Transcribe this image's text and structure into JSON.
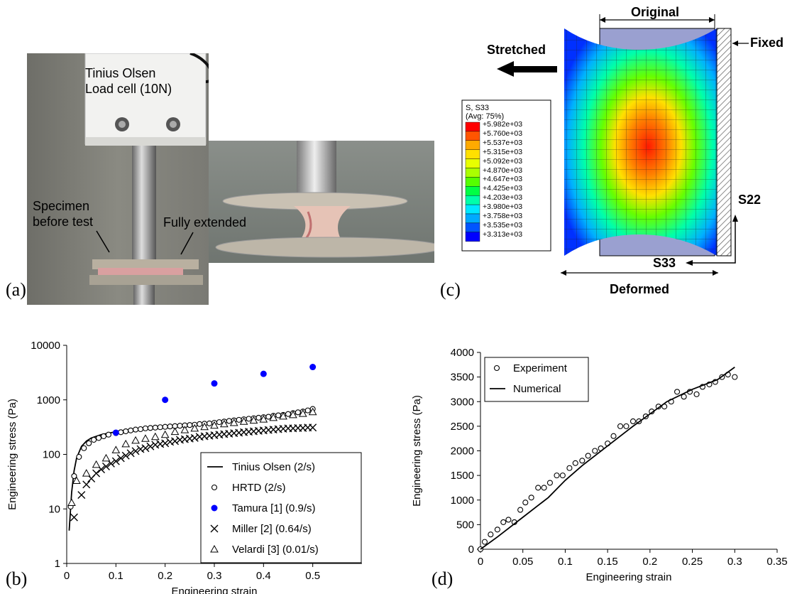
{
  "panels": {
    "a": {
      "letter": "(a)",
      "load_cell_line1": "Tinius Olsen",
      "load_cell_line2": "Load cell (10N)",
      "specimen_line1": "Specimen",
      "specimen_line2": "before test",
      "extended": "Fully extended"
    },
    "c": {
      "letter": "(c)",
      "original": "Original",
      "stretched": "Stretched",
      "fixed": "Fixed",
      "deformed": "Deformed",
      "s22": "S22",
      "s33": "S33",
      "legend_title1": "S, S33",
      "legend_title2": "(Avg: 75%)",
      "legend_values": [
        "+5.982e+03",
        "+5.760e+03",
        "+5.537e+03",
        "+5.315e+03",
        "+5.092e+03",
        "+4.870e+03",
        "+4.647e+03",
        "+4.425e+03",
        "+4.203e+03",
        "+3.980e+03",
        "+3.758e+03",
        "+3.535e+03",
        "+3.313e+03"
      ],
      "legend_colors": [
        "#ff0000",
        "#ff5500",
        "#ffaa00",
        "#ffe000",
        "#e8ff00",
        "#aaff00",
        "#55ff00",
        "#00ff44",
        "#00ffaa",
        "#00e8ff",
        "#00aaff",
        "#0055ff",
        "#0000ff"
      ]
    },
    "b": {
      "letter": "(b)"
    },
    "d": {
      "letter": "(d)"
    }
  },
  "chart_data": [
    {
      "id": "b",
      "type": "scatter",
      "xlabel": "Engineering strain",
      "ylabel": "Engineering stress (Pa)",
      "xlim": [
        0,
        0.6
      ],
      "ylim": [
        1,
        10000
      ],
      "yscale": "log",
      "xticks": [
        "0",
        "0.1",
        "0.2",
        "0.3",
        "0.4",
        "0.5"
      ],
      "yticks": [
        "1",
        "10",
        "100",
        "1000",
        "10000"
      ],
      "legend_position": "bottom-right",
      "series": [
        {
          "name": "Tinius Olsen (2/s)",
          "marker": "line",
          "color": "#000000",
          "x": [
            0.005,
            0.01,
            0.015,
            0.02,
            0.03,
            0.04,
            0.05,
            0.07,
            0.1,
            0.15,
            0.2,
            0.25,
            0.3,
            0.35,
            0.4,
            0.45,
            0.5
          ],
          "y": [
            4,
            20,
            50,
            85,
            140,
            175,
            200,
            230,
            260,
            300,
            330,
            360,
            390,
            430,
            480,
            560,
            680
          ]
        },
        {
          "name": "HRTD        (2/s)",
          "marker": "circle",
          "color": "#000000",
          "x": [
            0.008,
            0.015,
            0.025,
            0.035,
            0.045,
            0.055,
            0.065,
            0.075,
            0.085,
            0.1,
            0.11,
            0.12,
            0.13,
            0.14,
            0.15,
            0.16,
            0.17,
            0.18,
            0.19,
            0.2,
            0.21,
            0.22,
            0.23,
            0.24,
            0.25,
            0.26,
            0.27,
            0.28,
            0.29,
            0.3,
            0.31,
            0.32,
            0.33,
            0.34,
            0.35,
            0.36,
            0.37,
            0.38,
            0.39,
            0.4,
            0.41,
            0.42,
            0.43,
            0.44,
            0.45,
            0.46,
            0.47,
            0.48,
            0.49,
            0.5
          ],
          "y": [
            11,
            40,
            90,
            130,
            160,
            185,
            200,
            215,
            230,
            245,
            255,
            265,
            275,
            285,
            290,
            300,
            305,
            310,
            315,
            320,
            325,
            330,
            335,
            340,
            345,
            350,
            360,
            365,
            370,
            380,
            390,
            400,
            410,
            420,
            430,
            440,
            450,
            460,
            470,
            480,
            490,
            510,
            520,
            530,
            550,
            570,
            590,
            610,
            640,
            680
          ]
        },
        {
          "name": "Tamura [1] (0.9/s)",
          "marker": "filled-circle",
          "color": "#0000ff",
          "x": [
            0.1,
            0.2,
            0.3,
            0.4,
            0.5
          ],
          "y": [
            250,
            1000,
            2000,
            3000,
            4000
          ]
        },
        {
          "name": "Miller     [2] (0.64/s)",
          "marker": "x",
          "color": "#000000",
          "x": [
            0.015,
            0.03,
            0.04,
            0.05,
            0.06,
            0.07,
            0.08,
            0.09,
            0.1,
            0.11,
            0.12,
            0.13,
            0.14,
            0.15,
            0.16,
            0.17,
            0.18,
            0.19,
            0.2,
            0.21,
            0.22,
            0.23,
            0.24,
            0.25,
            0.26,
            0.27,
            0.28,
            0.29,
            0.3,
            0.31,
            0.32,
            0.33,
            0.34,
            0.35,
            0.36,
            0.37,
            0.38,
            0.39,
            0.4,
            0.41,
            0.42,
            0.43,
            0.44,
            0.45,
            0.46,
            0.47,
            0.48,
            0.49,
            0.5
          ],
          "y": [
            7,
            18,
            28,
            36,
            45,
            53,
            60,
            68,
            75,
            85,
            95,
            105,
            115,
            125,
            130,
            140,
            150,
            155,
            160,
            170,
            175,
            185,
            190,
            195,
            200,
            210,
            215,
            220,
            225,
            230,
            235,
            240,
            245,
            250,
            255,
            260,
            265,
            270,
            275,
            280,
            285,
            290,
            295,
            300,
            300,
            305,
            305,
            310,
            310
          ]
        },
        {
          "name": "Velardi   [3] (0.01/s)",
          "marker": "triangle",
          "color": "#000000",
          "x": [
            0.01,
            0.02,
            0.04,
            0.06,
            0.08,
            0.1,
            0.12,
            0.14,
            0.16,
            0.18,
            0.2,
            0.22,
            0.24,
            0.26,
            0.28,
            0.3,
            0.32,
            0.34,
            0.36,
            0.38,
            0.4,
            0.42,
            0.44,
            0.46,
            0.48,
            0.5
          ],
          "y": [
            13,
            33,
            45,
            65,
            85,
            120,
            155,
            180,
            195,
            210,
            230,
            260,
            280,
            300,
            320,
            340,
            360,
            380,
            400,
            420,
            440,
            470,
            500,
            530,
            560,
            600
          ]
        }
      ]
    },
    {
      "id": "d",
      "type": "scatter",
      "xlabel": "Engineering strain",
      "ylabel": "Engineering stress (Pa)",
      "xlim": [
        0,
        0.35
      ],
      "ylim": [
        0,
        4000
      ],
      "xticks": [
        "0",
        "0.05",
        "0.1",
        "0.15",
        "0.2",
        "0.25",
        "0.3",
        "0.35"
      ],
      "yticks": [
        "0",
        "500",
        "1000",
        "1500",
        "2000",
        "2500",
        "3000",
        "3500",
        "4000"
      ],
      "legend_position": "top-left",
      "series": [
        {
          "name": "Experiment",
          "marker": "circle",
          "color": "#000000",
          "x": [
            0,
            0.005,
            0.012,
            0.02,
            0.027,
            0.033,
            0.04,
            0.047,
            0.053,
            0.06,
            0.068,
            0.075,
            0.082,
            0.09,
            0.097,
            0.105,
            0.112,
            0.12,
            0.127,
            0.135,
            0.142,
            0.15,
            0.157,
            0.165,
            0.172,
            0.18,
            0.187,
            0.195,
            0.202,
            0.21,
            0.217,
            0.225,
            0.232,
            0.24,
            0.247,
            0.255,
            0.262,
            0.27,
            0.277,
            0.285,
            0.292,
            0.3
          ],
          "y": [
            0,
            150,
            300,
            400,
            550,
            600,
            550,
            800,
            950,
            1050,
            1250,
            1250,
            1350,
            1500,
            1500,
            1650,
            1750,
            1800,
            1900,
            2000,
            2050,
            2150,
            2300,
            2500,
            2500,
            2600,
            2600,
            2700,
            2800,
            2900,
            2900,
            3000,
            3200,
            3100,
            3200,
            3150,
            3300,
            3350,
            3400,
            3500,
            3550,
            3500
          ]
        },
        {
          "name": "Numerical",
          "marker": "line",
          "color": "#000000",
          "x": [
            0,
            0.02,
            0.05,
            0.08,
            0.1,
            0.12,
            0.15,
            0.18,
            0.2,
            0.22,
            0.25,
            0.28,
            0.3
          ],
          "y": [
            0,
            250,
            650,
            1050,
            1400,
            1700,
            2100,
            2500,
            2750,
            3000,
            3250,
            3450,
            3700
          ]
        }
      ]
    }
  ]
}
